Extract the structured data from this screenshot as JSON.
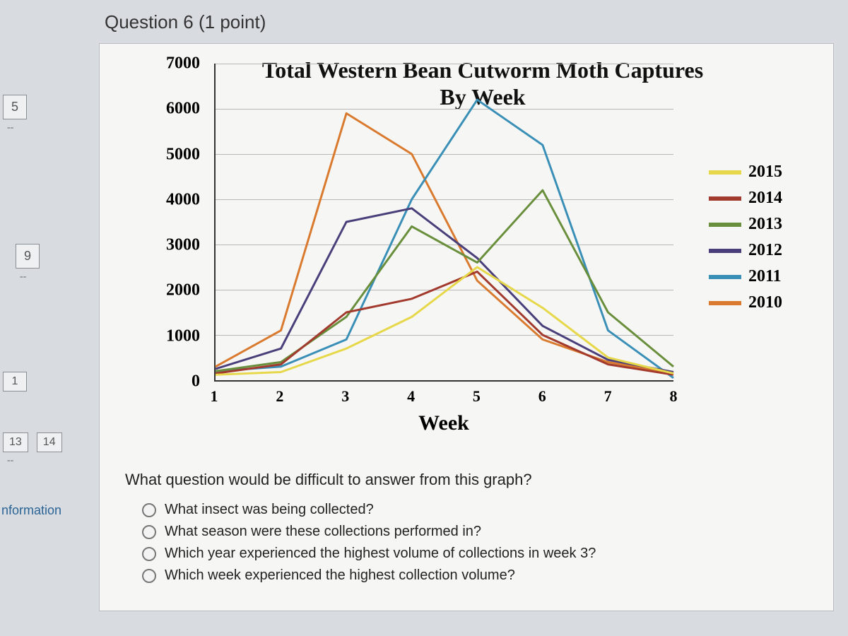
{
  "nav": {
    "items": [
      {
        "label": "5",
        "dash": "--"
      },
      {
        "label": "9",
        "dash": "--"
      },
      {
        "label": "1",
        "dash": ""
      },
      {
        "label": "13",
        "dash": "--",
        "pair": "14"
      }
    ],
    "link": "nformation"
  },
  "question": {
    "header": "Question 6 (1 point)",
    "prompt": "What question would be difficult to answer from this graph?",
    "options": [
      "What insect was being collected?",
      "What season were these collections performed in?",
      "Which year experienced the highest volume of collections in week 3?",
      "Which week experienced the highest collection volume?"
    ]
  },
  "chart": {
    "type": "line",
    "title": "Total Western Bean Cutworm Moth Captures By Week",
    "xlabel": "Week",
    "x_ticks": [
      1,
      2,
      3,
      4,
      5,
      6,
      7,
      8
    ],
    "y_ticks": [
      0,
      1000,
      2000,
      3000,
      4000,
      5000,
      6000,
      7000
    ],
    "ylim": [
      0,
      7000
    ],
    "xlim": [
      1,
      8
    ],
    "background_color": "#f6f6f4",
    "grid_color": "#b8b8b8",
    "axis_color": "#333333",
    "title_fontsize": 32,
    "label_fontsize": 24,
    "line_width": 3,
    "series": [
      {
        "name": "2015",
        "color": "#e6d84a",
        "values": [
          120,
          180,
          700,
          1400,
          2500,
          1600,
          500,
          150
        ]
      },
      {
        "name": "2014",
        "color": "#a23a2e",
        "values": [
          150,
          350,
          1500,
          1800,
          2400,
          1000,
          350,
          120
        ]
      },
      {
        "name": "2013",
        "color": "#6a8f3c",
        "values": [
          200,
          400,
          1400,
          3400,
          2600,
          4200,
          1500,
          300
        ]
      },
      {
        "name": "2012",
        "color": "#4a3f7a",
        "values": [
          250,
          700,
          3500,
          3800,
          2700,
          1200,
          450,
          180
        ]
      },
      {
        "name": "2011",
        "color": "#3a8fb7",
        "values": [
          200,
          300,
          900,
          4000,
          6200,
          5200,
          1100,
          50
        ]
      },
      {
        "name": "2010",
        "color": "#d97a2e",
        "values": [
          300,
          1100,
          5900,
          5000,
          2200,
          900,
          400,
          150
        ]
      }
    ]
  }
}
